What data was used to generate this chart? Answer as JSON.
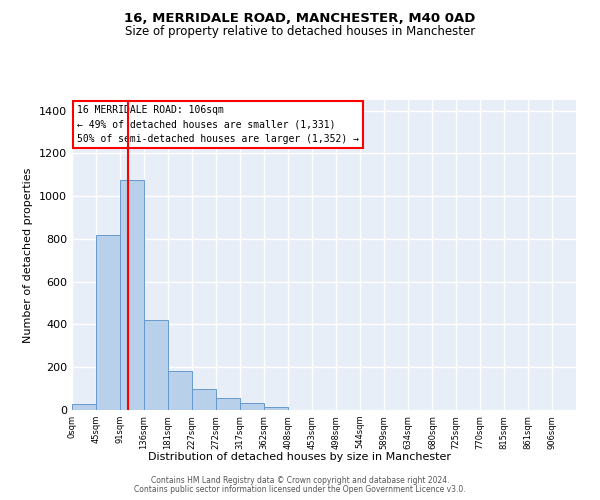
{
  "title": "16, MERRIDALE ROAD, MANCHESTER, M40 0AD",
  "subtitle": "Size of property relative to detached houses in Manchester",
  "xlabel": "Distribution of detached houses by size in Manchester",
  "ylabel": "Number of detached properties",
  "bar_color": "#b8d0ea",
  "bar_edgecolor": "#6699cc",
  "background_color": "#e8eef8",
  "grid_color": "#ffffff",
  "bin_labels": [
    "0sqm",
    "45sqm",
    "91sqm",
    "136sqm",
    "181sqm",
    "227sqm",
    "272sqm",
    "317sqm",
    "362sqm",
    "408sqm",
    "453sqm",
    "498sqm",
    "544sqm",
    "589sqm",
    "634sqm",
    "680sqm",
    "725sqm",
    "770sqm",
    "815sqm",
    "861sqm",
    "906sqm"
  ],
  "bin_edges": [
    0,
    45,
    91,
    136,
    181,
    227,
    272,
    317,
    362,
    408,
    453,
    498,
    544,
    589,
    634,
    680,
    725,
    770,
    815,
    861,
    906,
    951
  ],
  "bar_values": [
    28,
    820,
    1075,
    420,
    183,
    100,
    57,
    33,
    14,
    0,
    0,
    0,
    0,
    0,
    0,
    0,
    0,
    0,
    0,
    0,
    0
  ],
  "ylim": [
    0,
    1450
  ],
  "yticks": [
    0,
    200,
    400,
    600,
    800,
    1000,
    1200,
    1400
  ],
  "property_line_x": 106,
  "annotation_text": "16 MERRIDALE ROAD: 106sqm\n← 49% of detached houses are smaller (1,331)\n50% of semi-detached houses are larger (1,352) →",
  "footer1": "Contains HM Land Registry data © Crown copyright and database right 2024.",
  "footer2": "Contains public sector information licensed under the Open Government Licence v3.0."
}
